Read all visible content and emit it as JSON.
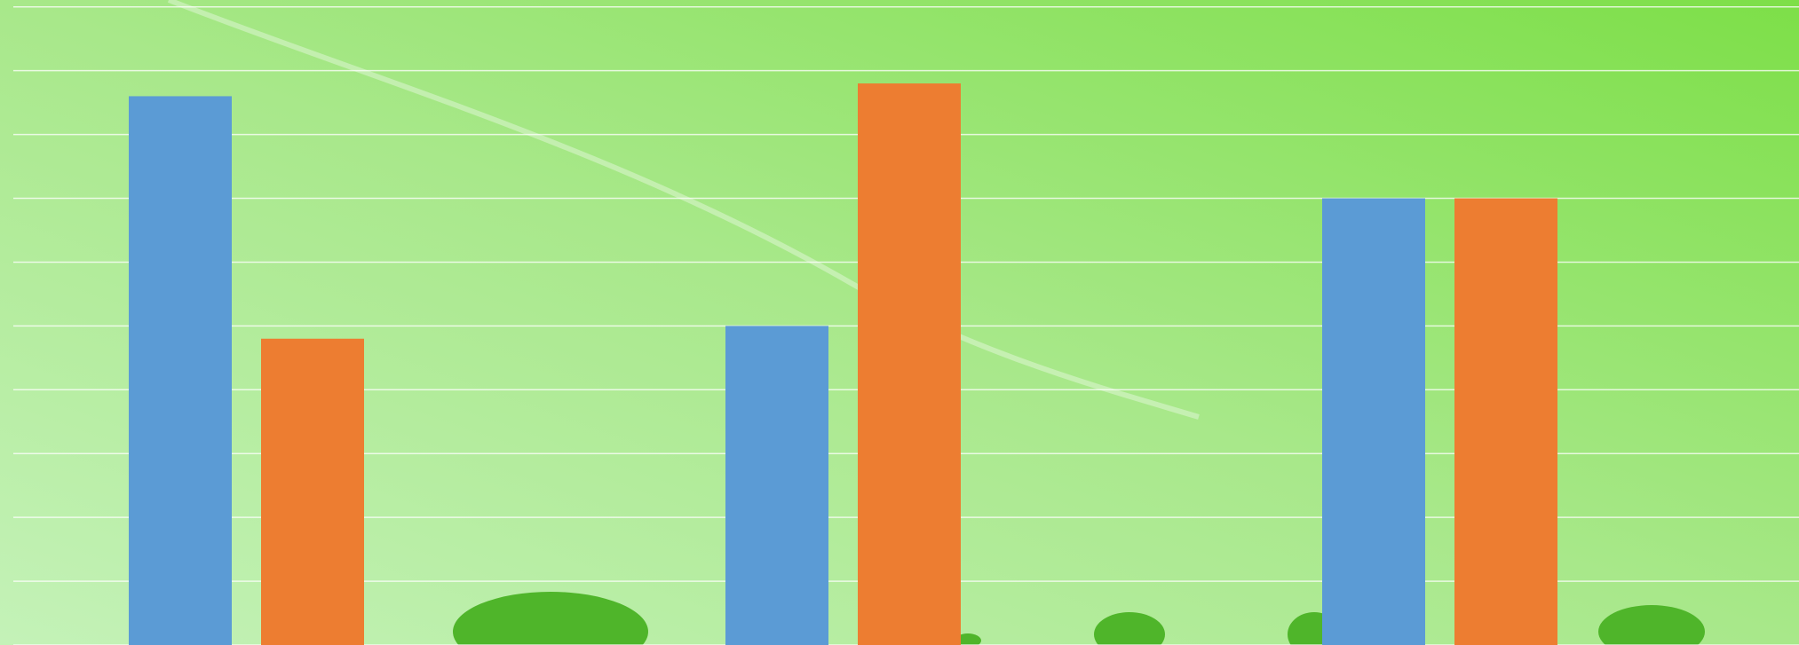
{
  "chart_data": {
    "type": "bar",
    "categories": [
      null,
      null,
      null
    ],
    "series": [
      {
        "color": "#5b9bd5",
        "values": [
          8.6,
          5.0,
          7.0
        ]
      },
      {
        "color": "#ed7d31",
        "values": [
          4.8,
          8.8,
          7.0
        ]
      }
    ],
    "ylim": [
      0,
      10
    ],
    "yticks": [
      0,
      1,
      2,
      3,
      4,
      5,
      6,
      7,
      8,
      9,
      10
    ],
    "grid": true
  }
}
